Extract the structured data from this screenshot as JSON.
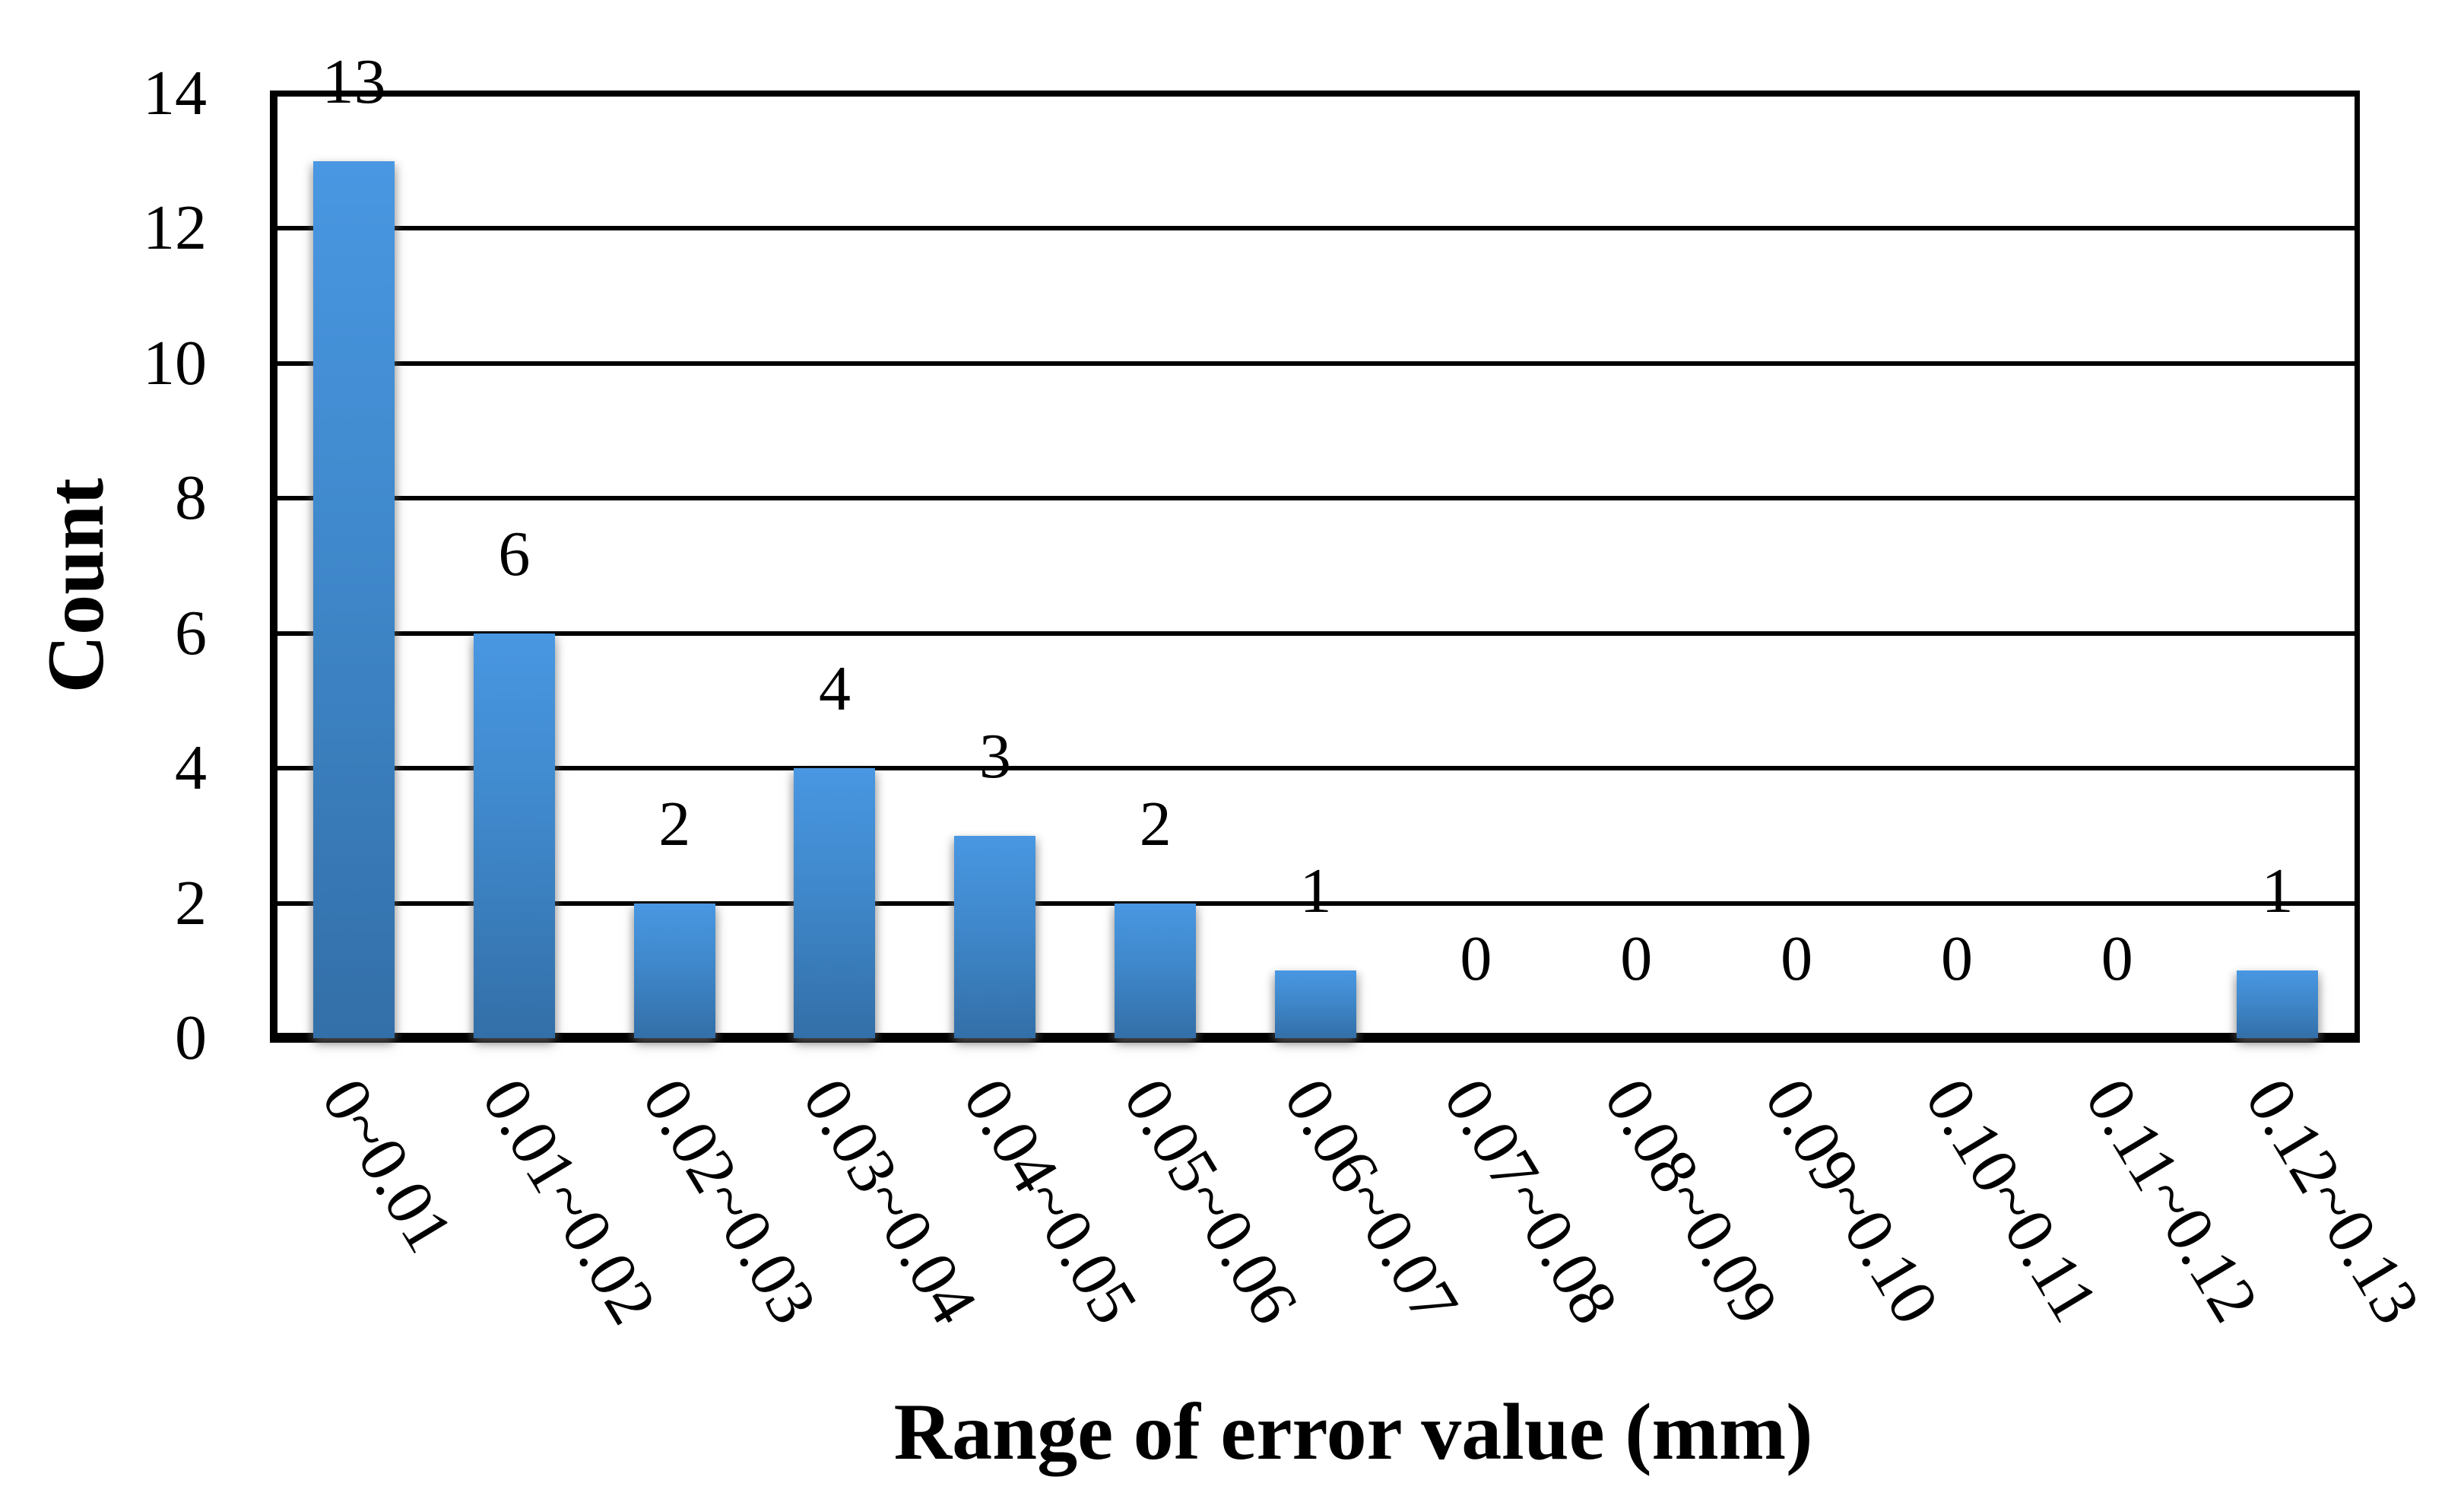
{
  "chart_data": {
    "type": "bar",
    "title": "",
    "xlabel": "Range of error value (mm)",
    "ylabel": "Count",
    "categories": [
      "0~0.01",
      "0.01~0.02",
      "0.02~0.03",
      "0.03~0.04",
      "0.04~0.05",
      "0.05~0.06",
      "0.06~0.07",
      "0.07~0.08",
      "0.08~0.09",
      "0.09~0.10",
      "0.10~0.11",
      "0.11~0.12",
      "0.12~0.13"
    ],
    "values": [
      13,
      6,
      2,
      4,
      3,
      2,
      1,
      0,
      0,
      0,
      0,
      0,
      1
    ],
    "data_labels": [
      "13",
      "6",
      "2",
      "4",
      "3",
      "2",
      "1",
      "0",
      "0",
      "0",
      "0",
      "0",
      "1"
    ],
    "y_ticks": [
      "14",
      "12",
      "10",
      "8",
      "6",
      "4",
      "2",
      "0"
    ],
    "ylim": [
      0,
      14
    ],
    "grid": "horizontal gridlines every 2 units, black",
    "legend_position": "none",
    "x_label_rotation_deg": 59,
    "colors": {
      "bar_gradient_top": "#4997E2",
      "bar_gradient_bottom": "#336FA8",
      "axis_line": "#000000",
      "text": "#000000",
      "background": "#FFFFFF"
    }
  }
}
